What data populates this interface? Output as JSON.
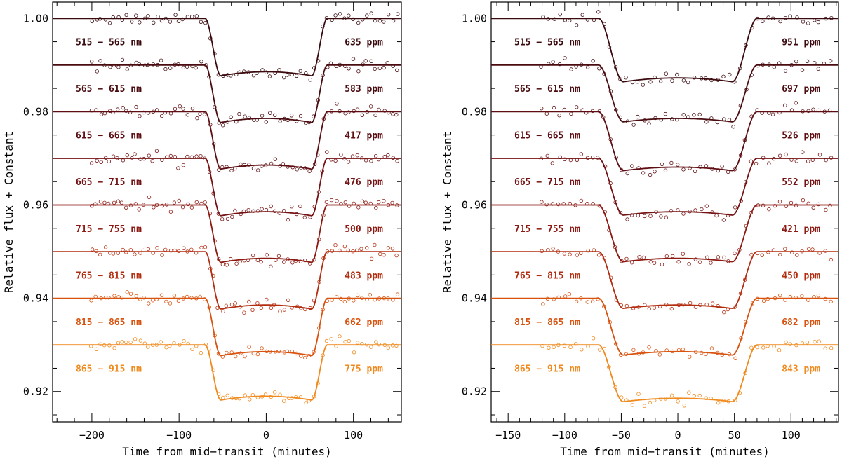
{
  "chart_data": [
    {
      "type": "line",
      "panel": "left",
      "title": "",
      "xlabel": "Time from mid−transit (minutes)",
      "ylabel": "Relative flux + Constant",
      "xlim": [
        -245,
        155
      ],
      "ylim": [
        0.9135,
        1.0035
      ],
      "xticks": [
        -200,
        -100,
        0,
        100
      ],
      "xtick_labels": [
        "−200",
        "−100",
        "0",
        "100"
      ],
      "yticks": [
        0.92,
        0.94,
        0.96,
        0.98,
        1.0
      ],
      "ytick_labels": [
        "0.92",
        "0.94",
        "0.96",
        "0.98",
        "1.00"
      ],
      "model": {
        "t1": 70,
        "t2": 52,
        "baseline_start": -245,
        "baseline_end": 155
      },
      "data_range": [
        -200,
        150
      ],
      "series": [
        {
          "name": "515 − 565 nm",
          "noise_label": "635 ppm",
          "baseline": 1.0,
          "depth": 0.013,
          "color": "#3a0a0e"
        },
        {
          "name": "565 − 615 nm",
          "noise_label": "583 ppm",
          "baseline": 0.99,
          "depth": 0.013,
          "color": "#4a0c10"
        },
        {
          "name": "615 − 665 nm",
          "noise_label": "417 ppm",
          "baseline": 0.98,
          "depth": 0.013,
          "color": "#5e0e12"
        },
        {
          "name": "665 − 715 nm",
          "noise_label": "476 ppm",
          "baseline": 0.97,
          "depth": 0.013,
          "color": "#741214"
        },
        {
          "name": "715 − 755 nm",
          "noise_label": "500 ppm",
          "baseline": 0.96,
          "depth": 0.013,
          "color": "#8c1a12"
        },
        {
          "name": "765 − 815 nm",
          "noise_label": "483 ppm",
          "baseline": 0.95,
          "depth": 0.013,
          "color": "#b32e10"
        },
        {
          "name": "815 − 865 nm",
          "noise_label": "662 ppm",
          "baseline": 0.94,
          "depth": 0.013,
          "color": "#d9530f"
        },
        {
          "name": "865 − 915 nm",
          "noise_label": "775 ppm",
          "baseline": 0.93,
          "depth": 0.0125,
          "color": "#f08a1e"
        }
      ]
    },
    {
      "type": "line",
      "panel": "right",
      "title": "",
      "xlabel": "Time from mid−transit (minutes)",
      "ylabel": "Relative flux + Constant",
      "xlim": [
        -165,
        142
      ],
      "ylim": [
        0.9135,
        1.0035
      ],
      "xticks": [
        -150,
        -100,
        -50,
        0,
        50,
        100
      ],
      "xtick_labels": [
        "−150",
        "−100",
        "−50",
        "0",
        "50",
        "100"
      ],
      "yticks": [
        0.92,
        0.94,
        0.96,
        0.98,
        1.0
      ],
      "ytick_labels": [
        "0.92",
        "0.94",
        "0.96",
        "0.98",
        "1.00"
      ],
      "model": {
        "t1": 70,
        "t2": 48,
        "baseline_start": -165,
        "baseline_end": 142
      },
      "data_range": [
        -120,
        135
      ],
      "series": [
        {
          "name": "515 − 565 nm",
          "noise_label": "951 ppm",
          "baseline": 1.0,
          "depth": 0.0145,
          "color": "#3a0a0e"
        },
        {
          "name": "565 − 615 nm",
          "noise_label": "697 ppm",
          "baseline": 0.99,
          "depth": 0.013,
          "color": "#4a0c10"
        },
        {
          "name": "615 − 665 nm",
          "noise_label": "526 ppm",
          "baseline": 0.98,
          "depth": 0.0135,
          "color": "#5e0e12"
        },
        {
          "name": "665 − 715 nm",
          "noise_label": "552 ppm",
          "baseline": 0.97,
          "depth": 0.013,
          "color": "#741214"
        },
        {
          "name": "715 − 755 nm",
          "noise_label": "421 ppm",
          "baseline": 0.96,
          "depth": 0.013,
          "color": "#8c1a12"
        },
        {
          "name": "765 − 815 nm",
          "noise_label": "450 ppm",
          "baseline": 0.95,
          "depth": 0.013,
          "color": "#b32e10"
        },
        {
          "name": "815 − 865 nm",
          "noise_label": "682 ppm",
          "baseline": 0.94,
          "depth": 0.013,
          "color": "#d9530f"
        },
        {
          "name": "865 − 915 nm",
          "noise_label": "843 ppm",
          "baseline": 0.93,
          "depth": 0.013,
          "color": "#f08a1e"
        }
      ]
    }
  ]
}
